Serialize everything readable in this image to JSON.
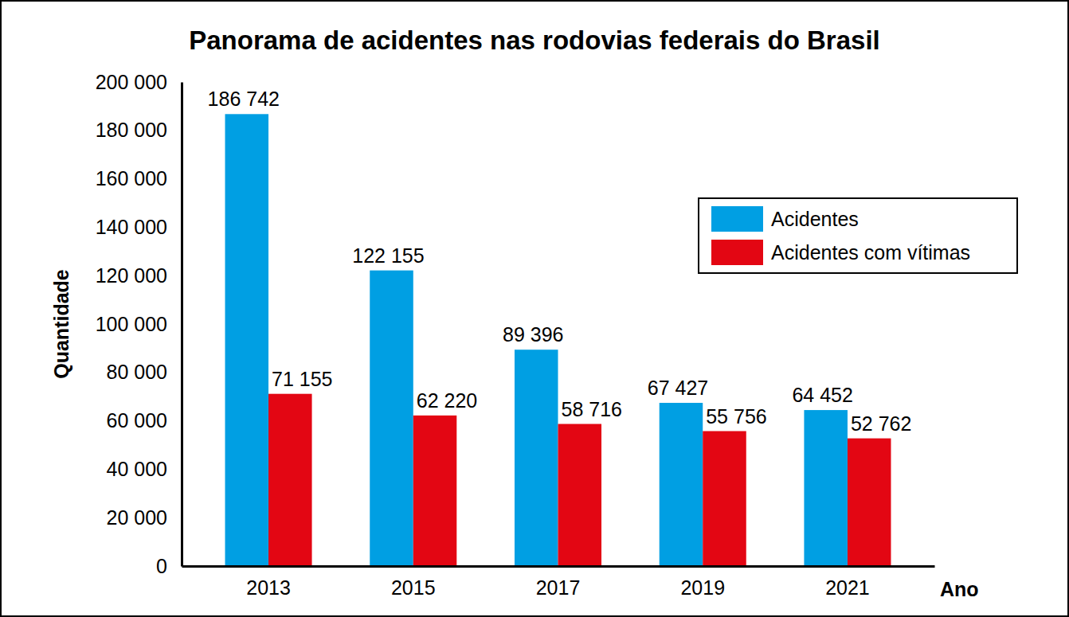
{
  "chart_data": {
    "type": "bar",
    "title": "Panorama de acidentes nas rodovias federais do Brasil",
    "x_label": "Ano",
    "y_label": "Quantidade",
    "categories": [
      "2013",
      "2015",
      "2017",
      "2019",
      "2021"
    ],
    "series": [
      {
        "name": "Acidentes",
        "color": "#009fe3",
        "values": [
          186742,
          122155,
          89396,
          67427,
          64452
        ],
        "value_labels": [
          "186 742",
          "122 155",
          "89 396",
          "67 427",
          "64 452"
        ]
      },
      {
        "name": "Acidentes com vítimas",
        "color": "#e30613",
        "values": [
          71155,
          62220,
          58716,
          55756,
          52762
        ],
        "value_labels": [
          "71 155",
          "62 220",
          "58 716",
          "55 756",
          "52 762"
        ]
      }
    ],
    "ylim": [
      0,
      200000
    ],
    "yticks": [
      0,
      {
        "value": 20000,
        "label": "20 000"
      },
      {
        "value": 40000,
        "label": "40 000"
      },
      {
        "value": 60000,
        "label": "60 000"
      },
      {
        "value": 80000,
        "label": "80 000"
      },
      {
        "value": 100000,
        "label": "100 000"
      },
      {
        "value": 120000,
        "label": "120 000"
      },
      {
        "value": 140000,
        "label": "140 000"
      },
      {
        "value": 160000,
        "label": "160 000"
      },
      {
        "value": 180000,
        "label": "180 000"
      },
      {
        "value": 200000,
        "label": "200 000"
      }
    ],
    "grid": false,
    "data_labels": true,
    "legend": "upper right"
  }
}
